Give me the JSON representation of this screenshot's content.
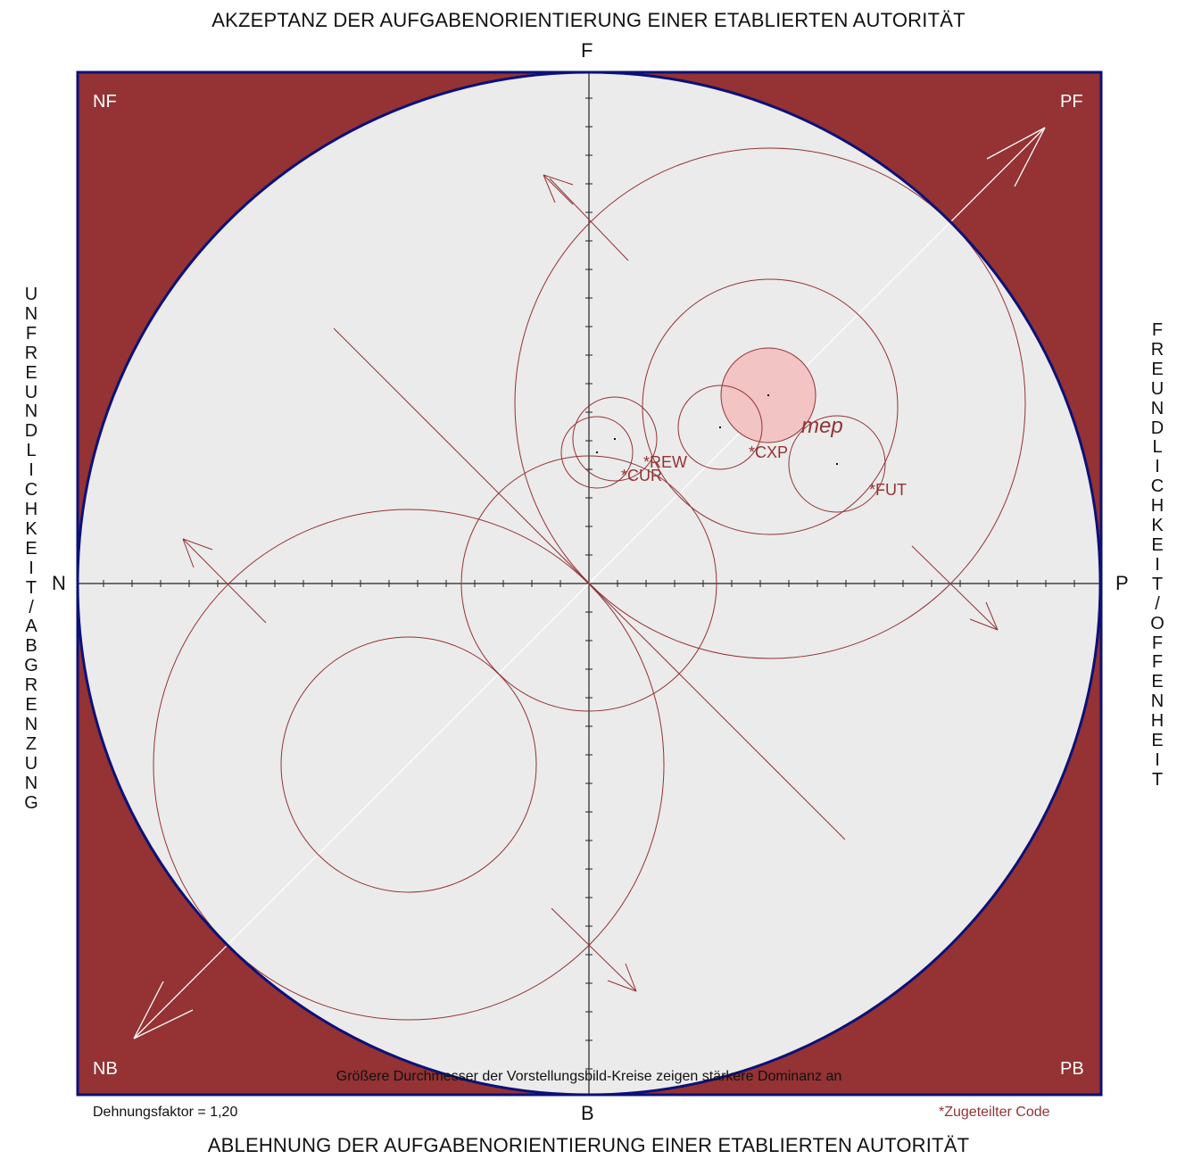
{
  "titles": {
    "top": "AKZEPTANZ DER AUFGABENORIENTIERUNG EINER ETABLIERTEN AUTORITÄT",
    "bottom": "ABLEHNUNG DER AUFGABENORIENTIERUNG EINER ETABLIERTEN AUTORITÄT",
    "left": "UNFREUNDLICHKEIT/ABGRENZUNG",
    "right": "FREUNDLICHKEIT/OFFENHEIT"
  },
  "axes": {
    "top": "F",
    "bottom": "B",
    "left": "N",
    "right": "P"
  },
  "quadrants": {
    "nf": "NF",
    "pf": "PF",
    "nb": "NB",
    "pb": "PB"
  },
  "notes": {
    "dominance": "Größere Durchmesser der Vorstellungsbild-Kreise zeigen stärkere Dominanz an",
    "stretch": "Dehnungsfaktor = 1,20",
    "assigned": "*Zugeteilter Code"
  },
  "images": [
    {
      "label": "mep",
      "emphasis": true
    },
    {
      "label": "*CXP"
    },
    {
      "label": "*REW"
    },
    {
      "label": "*CUR"
    },
    {
      "label": "*FUT"
    }
  ],
  "colors": {
    "frame": "#943234",
    "circle_fill": "#ebebeb",
    "boundary": "#0c1177",
    "accent": "#943234",
    "mep_fill": "#f2c4c4"
  }
}
